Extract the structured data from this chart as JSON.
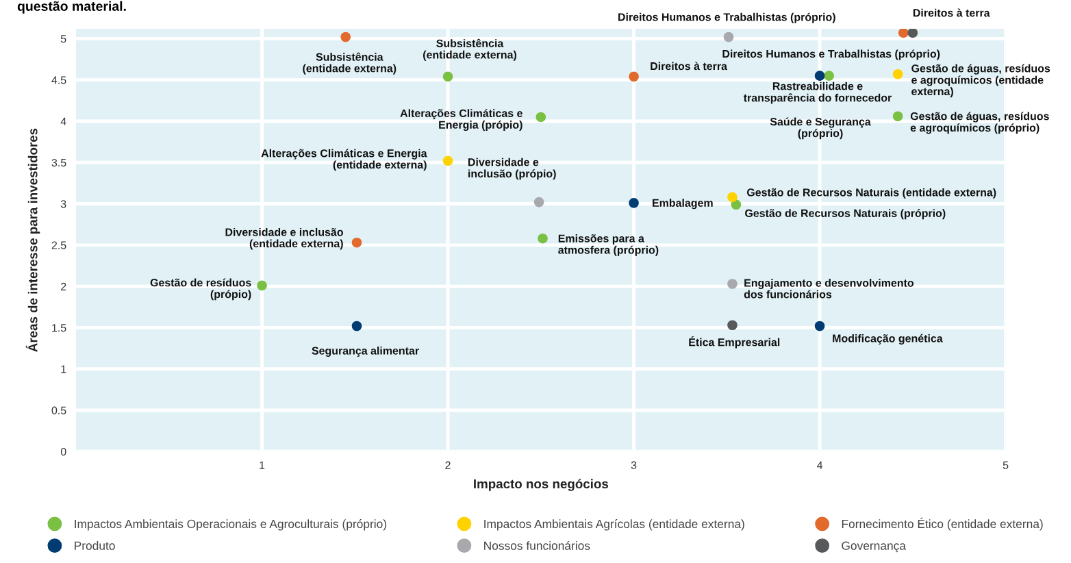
{
  "chart_data": {
    "type": "scatter",
    "title": "questão material.",
    "xlabel": "Impacto nos negócios",
    "ylabel": "Áreas de interesse para investidores",
    "xlim": [
      0,
      5
    ],
    "xticks": [
      1,
      2,
      3,
      4,
      5
    ],
    "ylim": [
      0,
      5.12
    ],
    "yticks": [
      0,
      0.5,
      1,
      1.5,
      2,
      2.5,
      3,
      3.5,
      4,
      4.5,
      5
    ],
    "grid": true,
    "legend": "bottom",
    "marker": "circle",
    "series": [
      {
        "name": "Impactos Ambientais Operacionais e Agroculturais (próprio)",
        "color": "#7ac143",
        "x": [
          2.0,
          2.5,
          4.05,
          4.42,
          3.55,
          2.51,
          1.0
        ],
        "values": [
          4.54,
          4.05,
          4.55,
          4.06,
          2.99,
          2.58,
          2.01
        ]
      },
      {
        "name": "Impactos Ambientais Agrícolas (entidade externa)",
        "color": "#ffd200",
        "x": [
          2.0,
          4.42,
          3.53
        ],
        "values": [
          3.52,
          4.57,
          3.08
        ]
      },
      {
        "name": "Fornecimento Ético (entidade externa)",
        "color": "#e26a2c",
        "x": [
          1.45,
          3.0,
          4.45,
          1.51
        ],
        "values": [
          5.02,
          4.54,
          5.07,
          2.53
        ]
      },
      {
        "name": "Produto",
        "color": "#003b71",
        "x": [
          4.0,
          3.0,
          1.51,
          4.0
        ],
        "values": [
          4.55,
          3.01,
          1.52,
          1.52
        ]
      },
      {
        "name": "Nossos funcionários",
        "color": "#a7a9ac",
        "x": [
          3.51,
          2.49,
          3.53
        ],
        "values": [
          5.02,
          3.02,
          2.03
        ]
      },
      {
        "name": "Governança",
        "color": "#58595b",
        "x": [
          4.5,
          3.53
        ],
        "values": [
          5.07,
          1.53
        ]
      }
    ],
    "annotations": [
      {
        "text": "Subsistência\n(entidade externa)",
        "x": 1.45,
        "y": 5.02
      },
      {
        "text": "Subsistência\n(entidade externa)",
        "x": 2.0,
        "y": 4.54
      },
      {
        "text": "Direitos Humanos e Trabalhistas (próprio)",
        "x": 3.51,
        "y": 5.02
      },
      {
        "text": "Direitos à terra",
        "x": 4.5,
        "y": 5.07
      },
      {
        "text": "Direitos Humanos e Trabalhistas (próprio)",
        "x": 4.45,
        "y": 5.07
      },
      {
        "text": "Direitos à terra",
        "x": 3.0,
        "y": 4.54
      },
      {
        "text": "Rastreabilidade e\ntransparência do fornecedor",
        "x": 4.05,
        "y": 4.55
      },
      "Saúde e Segurança\n(próprio)",
      {
        "text": "Gestão de águas, resíduos\ne agroquímicos (entidade\nexterna)",
        "x": 4.42,
        "y": 4.57
      },
      {
        "text": "Gestão de águas, resíduos\ne agroquímicos (próprio)",
        "x": 4.42,
        "y": 4.06
      },
      {
        "text": "Alterações Climáticas e\nEnergia (própio)",
        "x": 2.5,
        "y": 4.05
      },
      {
        "text": "Alterações Climáticas e Energia\n(entidade externa)",
        "x": 2.0,
        "y": 3.52
      },
      {
        "text": "Diversidade e\ninclusão (própio)",
        "x": 2.49,
        "y": 3.02
      },
      {
        "text": "Embalagem",
        "x": 3.0,
        "y": 3.01
      },
      {
        "text": "Gestão de Recursos Naturais (entidade externa)",
        "x": 3.53,
        "y": 3.08
      },
      {
        "text": "Gestão de Recursos Naturais (próprio)",
        "x": 3.55,
        "y": 2.99
      },
      {
        "text": "Diversidade e inclusão\n(entidade externa)",
        "x": 1.51,
        "y": 2.53
      },
      {
        "text": "Emissões para a\natmosfera (próprio)",
        "x": 2.51,
        "y": 2.58
      },
      {
        "text": "Gestão de resíduos\n(própio)",
        "x": 1.0,
        "y": 2.01
      },
      {
        "text": "Engajamento e desenvolvimento\ndos funcionários",
        "x": 3.53,
        "y": 2.03
      },
      {
        "text": "Segurança alimentar",
        "x": 1.51,
        "y": 1.52
      },
      {
        "text": "Ética Empresarial",
        "x": 3.53,
        "y": 1.53
      },
      {
        "text": "Modificação genética",
        "x": 4.0,
        "y": 1.52
      }
    ]
  }
}
